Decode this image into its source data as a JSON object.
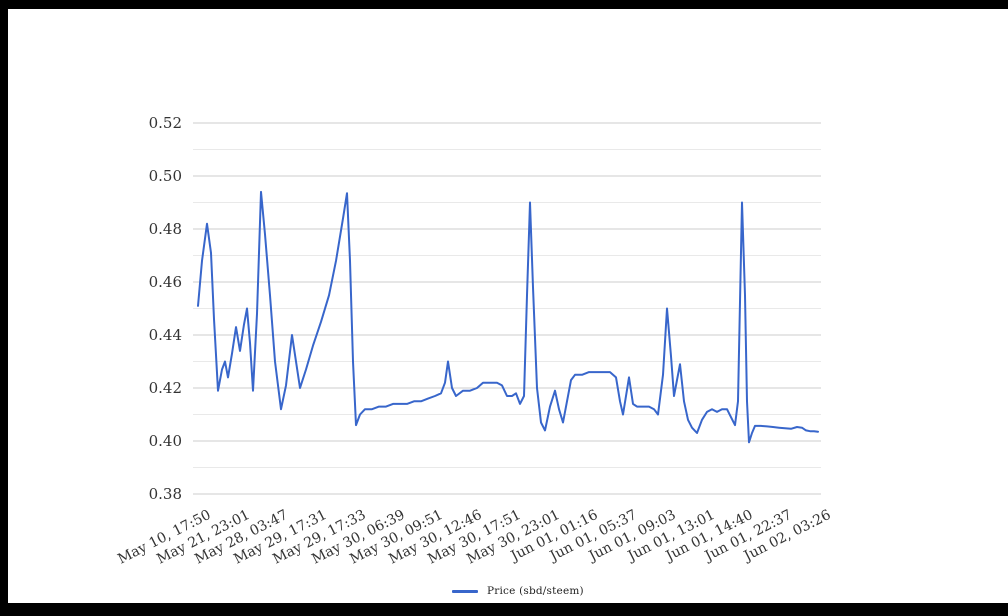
{
  "window": {
    "background": "#ffffff",
    "frame_color": "#000000"
  },
  "legend": {
    "label": "Price (sbd/steem)"
  },
  "colors": {
    "series_line": "#3866cb",
    "grid_major": "#cccccc",
    "grid_minor": "#e9e9e9",
    "axis_text": "#333333"
  },
  "chart_data": {
    "type": "line",
    "title": "",
    "xlabel": "",
    "ylabel": "",
    "ylim": [
      0.38,
      0.52
    ],
    "y_tick_labels": [
      "0.52",
      "0.50",
      "0.48",
      "0.46",
      "0.44",
      "0.42",
      "0.40",
      "0.38"
    ],
    "y_major_ticks": [
      0.52,
      0.5,
      0.48,
      0.46,
      0.44,
      0.42,
      0.4,
      0.38
    ],
    "y_minor_ticks": [
      0.51,
      0.49,
      0.47,
      0.45,
      0.43,
      0.41,
      0.39
    ],
    "grid": "horizontal, major and minor lines, no axis frame",
    "legend_position": "bottom-center",
    "x_tick_labels": [
      "May 10, 17:50",
      "May 21, 23:01",
      "May 28, 03:47",
      "May 29, 17:31",
      "May 29, 17:33",
      "May 30, 06:39",
      "May 30, 09:51",
      "May 30, 12:46",
      "May 30, 17:51",
      "May 30, 23:01",
      "Jun 01, 01:16",
      "Jun 01, 05:37",
      "Jun 01, 09:03",
      "Jun 01, 13:01",
      "Jun 01, 14:40",
      "Jun 01, 22:37",
      "Jun 02, 03:26"
    ],
    "series": [
      {
        "name": "Price (sbd/steem)",
        "color": "#3866cb",
        "points_format": "[x_position_0_to_1, price]",
        "points": [
          [
            0.0,
            0.451
          ],
          [
            0.0065,
            0.468
          ],
          [
            0.0145,
            0.482
          ],
          [
            0.021,
            0.471
          ],
          [
            0.0258,
            0.446
          ],
          [
            0.0323,
            0.419
          ],
          [
            0.0387,
            0.427
          ],
          [
            0.0435,
            0.43
          ],
          [
            0.0484,
            0.424
          ],
          [
            0.0548,
            0.433
          ],
          [
            0.0613,
            0.443
          ],
          [
            0.0677,
            0.434
          ],
          [
            0.0742,
            0.444
          ],
          [
            0.079,
            0.45
          ],
          [
            0.0839,
            0.437
          ],
          [
            0.0887,
            0.419
          ],
          [
            0.0952,
            0.448
          ],
          [
            0.1016,
            0.494
          ],
          [
            0.1081,
            0.478
          ],
          [
            0.1161,
            0.455
          ],
          [
            0.1242,
            0.43
          ],
          [
            0.1339,
            0.412
          ],
          [
            0.1419,
            0.421
          ],
          [
            0.1516,
            0.44
          ],
          [
            0.1645,
            0.42
          ],
          [
            0.1742,
            0.427
          ],
          [
            0.1855,
            0.436
          ],
          [
            0.1984,
            0.445
          ],
          [
            0.2113,
            0.455
          ],
          [
            0.2226,
            0.468
          ],
          [
            0.2339,
            0.484
          ],
          [
            0.2403,
            0.4935
          ],
          [
            0.2452,
            0.468
          ],
          [
            0.25,
            0.43
          ],
          [
            0.2548,
            0.406
          ],
          [
            0.2613,
            0.41
          ],
          [
            0.2694,
            0.412
          ],
          [
            0.2806,
            0.412
          ],
          [
            0.2919,
            0.413
          ],
          [
            0.3032,
            0.413
          ],
          [
            0.3145,
            0.414
          ],
          [
            0.3258,
            0.414
          ],
          [
            0.3371,
            0.414
          ],
          [
            0.3484,
            0.415
          ],
          [
            0.3597,
            0.415
          ],
          [
            0.371,
            0.416
          ],
          [
            0.3823,
            0.417
          ],
          [
            0.3919,
            0.418
          ],
          [
            0.3984,
            0.422
          ],
          [
            0.4032,
            0.43
          ],
          [
            0.4097,
            0.42
          ],
          [
            0.4161,
            0.417
          ],
          [
            0.4274,
            0.419
          ],
          [
            0.4387,
            0.419
          ],
          [
            0.45,
            0.42
          ],
          [
            0.4597,
            0.422
          ],
          [
            0.471,
            0.422
          ],
          [
            0.4823,
            0.422
          ],
          [
            0.4903,
            0.421
          ],
          [
            0.4984,
            0.417
          ],
          [
            0.5065,
            0.417
          ],
          [
            0.5129,
            0.418
          ],
          [
            0.5194,
            0.414
          ],
          [
            0.5258,
            0.417
          ],
          [
            0.5306,
            0.455
          ],
          [
            0.5355,
            0.49
          ],
          [
            0.5403,
            0.458
          ],
          [
            0.5468,
            0.42
          ],
          [
            0.5532,
            0.407
          ],
          [
            0.5597,
            0.404
          ],
          [
            0.5677,
            0.413
          ],
          [
            0.5758,
            0.419
          ],
          [
            0.5823,
            0.412
          ],
          [
            0.5887,
            0.407
          ],
          [
            0.5952,
            0.415
          ],
          [
            0.6016,
            0.423
          ],
          [
            0.6081,
            0.425
          ],
          [
            0.6194,
            0.425
          ],
          [
            0.6306,
            0.426
          ],
          [
            0.6419,
            0.426
          ],
          [
            0.6532,
            0.426
          ],
          [
            0.6645,
            0.426
          ],
          [
            0.6742,
            0.424
          ],
          [
            0.6806,
            0.415
          ],
          [
            0.6855,
            0.41
          ],
          [
            0.6903,
            0.417
          ],
          [
            0.6952,
            0.424
          ],
          [
            0.7016,
            0.414
          ],
          [
            0.7081,
            0.413
          ],
          [
            0.7177,
            0.413
          ],
          [
            0.7274,
            0.413
          ],
          [
            0.7355,
            0.412
          ],
          [
            0.7419,
            0.41
          ],
          [
            0.75,
            0.425
          ],
          [
            0.7565,
            0.45
          ],
          [
            0.7629,
            0.432
          ],
          [
            0.7677,
            0.417
          ],
          [
            0.7726,
            0.423
          ],
          [
            0.7774,
            0.429
          ],
          [
            0.7839,
            0.415
          ],
          [
            0.7903,
            0.408
          ],
          [
            0.7968,
            0.405
          ],
          [
            0.8048,
            0.403
          ],
          [
            0.8129,
            0.408
          ],
          [
            0.821,
            0.411
          ],
          [
            0.829,
            0.412
          ],
          [
            0.8371,
            0.411
          ],
          [
            0.8452,
            0.412
          ],
          [
            0.8532,
            0.412
          ],
          [
            0.8597,
            0.409
          ],
          [
            0.8661,
            0.406
          ],
          [
            0.871,
            0.415
          ],
          [
            0.8774,
            0.49
          ],
          [
            0.8823,
            0.455
          ],
          [
            0.8855,
            0.415
          ],
          [
            0.8887,
            0.3995
          ],
          [
            0.8935,
            0.403
          ],
          [
            0.8984,
            0.4057
          ],
          [
            0.9081,
            0.4057
          ],
          [
            0.9177,
            0.4055
          ],
          [
            0.9274,
            0.4053
          ],
          [
            0.9371,
            0.405
          ],
          [
            0.9468,
            0.4048
          ],
          [
            0.9565,
            0.4046
          ],
          [
            0.9661,
            0.4053
          ],
          [
            0.9742,
            0.405
          ],
          [
            0.9806,
            0.404
          ],
          [
            0.9871,
            0.4037
          ],
          [
            0.9935,
            0.4037
          ],
          [
            1.0,
            0.4035
          ]
        ]
      }
    ]
  }
}
